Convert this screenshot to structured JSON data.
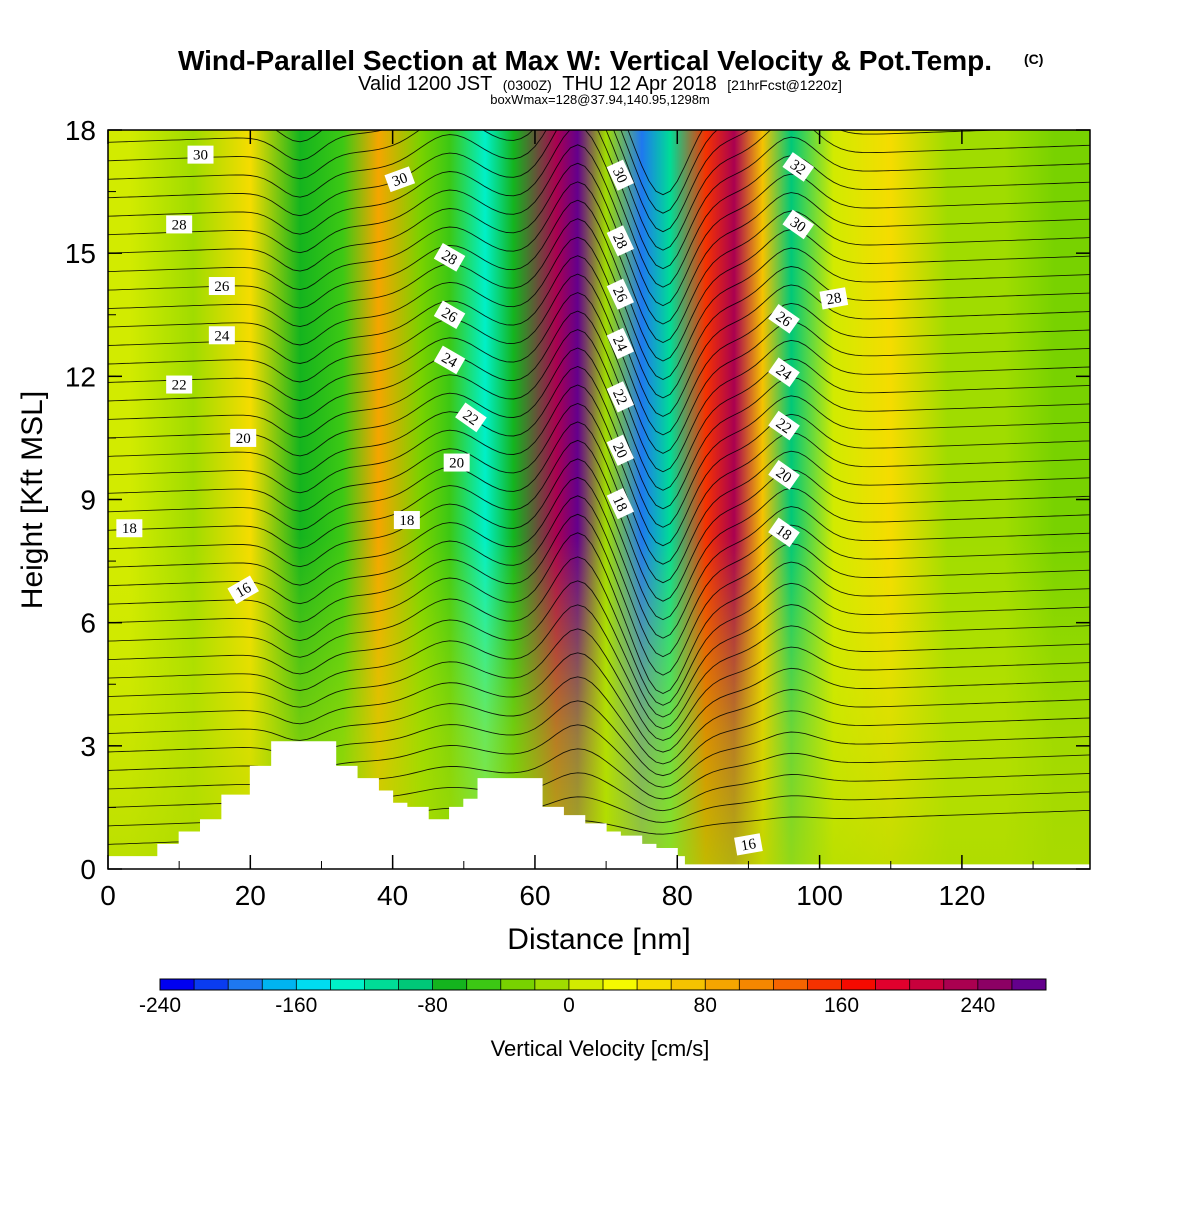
{
  "title": {
    "main": "Wind-Parallel Section at Max W: Vertical Velocity & Pot.Temp.",
    "main_mark": "(C)",
    "valid_prefix": "Valid 1200 JST",
    "valid_utc": "(0300Z)",
    "valid_date": "THU 12 Apr 2018",
    "forecast": "[21hrFcst@1220z]",
    "box_info": "boxWmax=128@37.94,140.95,1298m"
  },
  "chart_data": {
    "type": "heatmap",
    "xlabel": "Distance [nm]",
    "ylabel": "Height [Kft MSL]",
    "xlim": [
      0,
      138
    ],
    "ylim": [
      0,
      18
    ],
    "x_ticks": [
      0,
      20,
      40,
      60,
      80,
      100,
      120
    ],
    "y_ticks": [
      0,
      3,
      6,
      9,
      12,
      15,
      18
    ],
    "x_tick_labels": [
      "0",
      "20",
      "40",
      "60",
      "80",
      "100",
      "120"
    ],
    "y_tick_labels": [
      "0",
      "3",
      "6",
      "9",
      "12",
      "15",
      "18"
    ],
    "colorbar": {
      "title": "Vertical Velocity [cm/s]",
      "min": -240,
      "max": 280,
      "step": 20,
      "tick_values": [
        -240,
        -160,
        -80,
        0,
        80,
        160,
        240
      ],
      "tick_labels": [
        "-240",
        "-160",
        "-80",
        "0",
        "80",
        "160",
        "240"
      ],
      "colors": [
        "#0000f0",
        "#0a3cf0",
        "#1e78f0",
        "#00b4f0",
        "#00dcf0",
        "#00f0c8",
        "#00dc96",
        "#00c878",
        "#14b41e",
        "#3cc814",
        "#78d200",
        "#a0dc00",
        "#d2eb00",
        "#f5fa00",
        "#f5dc00",
        "#f5c300",
        "#f5a500",
        "#f58700",
        "#f56400",
        "#f53200",
        "#f50a00",
        "#e1002d",
        "#c8003c",
        "#aa0050",
        "#8c0064",
        "#64008c"
      ]
    },
    "vertical_velocity_bands": [
      {
        "x_center": 3,
        "value": 10
      },
      {
        "x_center": 12,
        "value": -20
      },
      {
        "x_center": 20,
        "value": 50
      },
      {
        "x_center": 27,
        "value": -80
      },
      {
        "x_center": 33,
        "value": -50
      },
      {
        "x_center": 38,
        "value": 80
      },
      {
        "x_center": 44,
        "value": -30
      },
      {
        "x_center": 48,
        "value": -60
      },
      {
        "x_center": 53,
        "value": -140
      },
      {
        "x_center": 57,
        "value": -80
      },
      {
        "x_center": 63,
        "value": 230
      },
      {
        "x_center": 66,
        "value": 280
      },
      {
        "x_center": 70,
        "value": -20
      },
      {
        "x_center": 75,
        "value": -200
      },
      {
        "x_center": 79,
        "value": -120
      },
      {
        "x_center": 84,
        "value": 150
      },
      {
        "x_center": 88,
        "value": 220
      },
      {
        "x_center": 92,
        "value": 60
      },
      {
        "x_center": 96,
        "value": -90
      },
      {
        "x_center": 102,
        "value": 0
      },
      {
        "x_center": 110,
        "value": 40
      },
      {
        "x_center": 118,
        "value": -10
      },
      {
        "x_center": 126,
        "value": -20
      },
      {
        "x_center": 133,
        "value": -30
      }
    ],
    "terrain": {
      "x": [
        0,
        6,
        7,
        9,
        10,
        13,
        16,
        20,
        23,
        26,
        32,
        35,
        38,
        40,
        42,
        45,
        48,
        50,
        52,
        55,
        58,
        61,
        64,
        67,
        70,
        72,
        75,
        77,
        80,
        81,
        83,
        86,
        88,
        90,
        95,
        100,
        105,
        110,
        120,
        130,
        138
      ],
      "height_kft": [
        0.3,
        0.3,
        0.6,
        0.6,
        0.9,
        1.2,
        1.8,
        2.5,
        3.1,
        3.1,
        2.5,
        2.2,
        1.9,
        1.6,
        1.5,
        1.2,
        1.5,
        1.7,
        2.2,
        2.2,
        2.2,
        1.5,
        1.3,
        1.1,
        0.9,
        0.8,
        0.6,
        0.5,
        0.3,
        0.1,
        0.1,
        0.1,
        0.1,
        0.1,
        0.1,
        0.1,
        0.1,
        0.1,
        0.1,
        0.1,
        0.1
      ]
    },
    "potential_temperature_labels": [
      {
        "text": "30",
        "x": 13,
        "y": 17.4,
        "angle": 0
      },
      {
        "text": "28",
        "x": 10,
        "y": 15.7,
        "angle": 0
      },
      {
        "text": "26",
        "x": 16,
        "y": 14.2,
        "angle": 0
      },
      {
        "text": "24",
        "x": 16,
        "y": 13.0,
        "angle": 0
      },
      {
        "text": "22",
        "x": 10,
        "y": 11.8,
        "angle": 0
      },
      {
        "text": "20",
        "x": 19,
        "y": 10.5,
        "angle": 0
      },
      {
        "text": "18",
        "x": 3,
        "y": 8.3,
        "angle": 0
      },
      {
        "text": "16",
        "x": 19,
        "y": 6.8,
        "angle": -30
      },
      {
        "text": "30",
        "x": 41,
        "y": 16.8,
        "angle": -20
      },
      {
        "text": "28",
        "x": 48,
        "y": 14.9,
        "angle": 30
      },
      {
        "text": "26",
        "x": 48,
        "y": 13.5,
        "angle": 30
      },
      {
        "text": "24",
        "x": 48,
        "y": 12.4,
        "angle": 30
      },
      {
        "text": "22",
        "x": 51,
        "y": 11.0,
        "angle": 35
      },
      {
        "text": "20",
        "x": 49,
        "y": 9.9,
        "angle": 0
      },
      {
        "text": "18",
        "x": 42,
        "y": 8.5,
        "angle": 0
      },
      {
        "text": "30",
        "x": 72,
        "y": 16.9,
        "angle": 65
      },
      {
        "text": "28",
        "x": 72,
        "y": 15.3,
        "angle": 65
      },
      {
        "text": "26",
        "x": 72,
        "y": 14.0,
        "angle": 65
      },
      {
        "text": "24",
        "x": 72,
        "y": 12.8,
        "angle": 65
      },
      {
        "text": "22",
        "x": 72,
        "y": 11.5,
        "angle": 65
      },
      {
        "text": "20",
        "x": 72,
        "y": 10.2,
        "angle": 65
      },
      {
        "text": "18",
        "x": 72,
        "y": 8.9,
        "angle": 65
      },
      {
        "text": "32",
        "x": 97,
        "y": 17.1,
        "angle": 35
      },
      {
        "text": "30",
        "x": 97,
        "y": 15.7,
        "angle": 35
      },
      {
        "text": "28",
        "x": 102,
        "y": 13.9,
        "angle": -10
      },
      {
        "text": "26",
        "x": 95,
        "y": 13.4,
        "angle": 35
      },
      {
        "text": "24",
        "x": 95,
        "y": 12.1,
        "angle": 35
      },
      {
        "text": "22",
        "x": 95,
        "y": 10.8,
        "angle": 35
      },
      {
        "text": "20",
        "x": 95,
        "y": 9.6,
        "angle": 35
      },
      {
        "text": "18",
        "x": 95,
        "y": 8.2,
        "angle": 35
      },
      {
        "text": "16",
        "x": 90,
        "y": 0.6,
        "angle": -10
      }
    ]
  }
}
